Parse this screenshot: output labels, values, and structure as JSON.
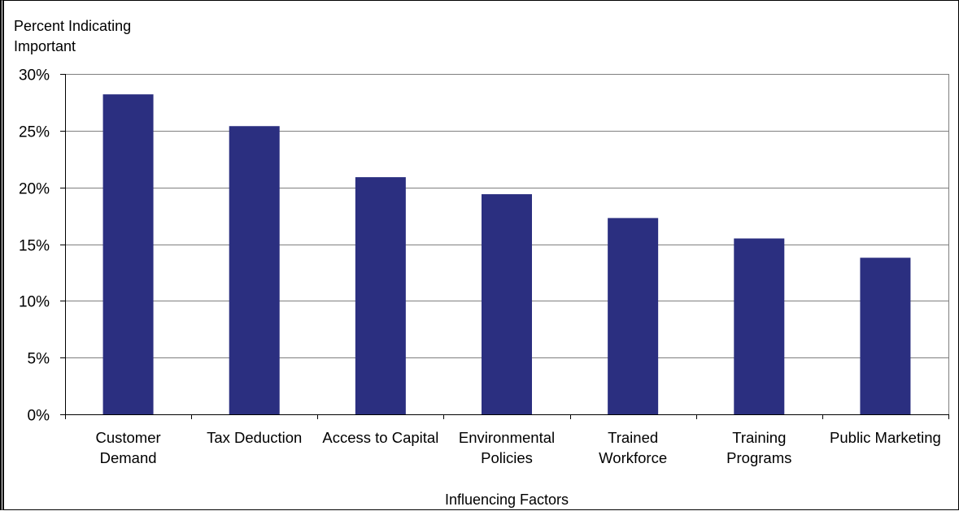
{
  "chart_data": {
    "type": "bar",
    "ylabel": [
      "Percent Indicating",
      "Important"
    ],
    "xlabel": "Influencing Factors",
    "categories": [
      [
        "Customer",
        "Demand"
      ],
      [
        "Tax Deduction"
      ],
      [
        "Access to Capital"
      ],
      [
        "Environmental",
        "Policies"
      ],
      [
        "Trained",
        "Workforce"
      ],
      [
        "Training",
        "Programs"
      ],
      [
        "Public  Marketing"
      ]
    ],
    "values": [
      28.2,
      25.4,
      20.9,
      19.4,
      17.3,
      15.5,
      13.8
    ],
    "ylim": [
      0,
      30
    ],
    "yticks": [
      0,
      5,
      10,
      15,
      20,
      25,
      30
    ],
    "ytick_labels": [
      "0%",
      "5%",
      "10%",
      "15%",
      "20%",
      "25%",
      "30%"
    ],
    "grid": "horizontal",
    "legend": "none",
    "colors": {
      "bar": "#2B2F80",
      "gridline": "#7F7F7F",
      "axis": "#000000"
    }
  }
}
